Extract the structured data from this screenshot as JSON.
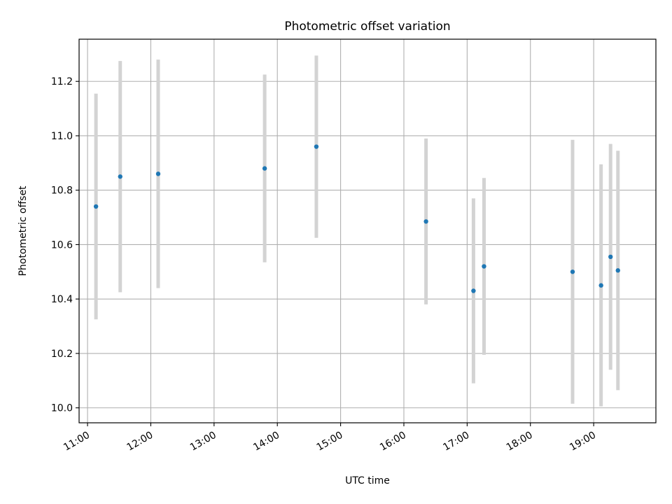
{
  "chart_data": {
    "type": "scatter",
    "title": "Photometric offset variation",
    "xlabel": "UTC time",
    "ylabel": "Photometric offset",
    "x_ticks": [
      "11:00",
      "12:00",
      "13:00",
      "14:00",
      "15:00",
      "16:00",
      "17:00",
      "18:00",
      "19:00"
    ],
    "y_ticks": [
      "10.0",
      "10.2",
      "10.4",
      "10.6",
      "10.8",
      "11.0",
      "11.2"
    ],
    "xlim": [
      "10:52",
      "19:59"
    ],
    "ylim": [
      9.945,
      11.355
    ],
    "grid": true,
    "colors": {
      "marker": "#1f77b4",
      "errorbar": "#d3d3d3",
      "grid": "#b0b0b0"
    },
    "series": [
      {
        "points": [
          {
            "x": "11:08",
            "y": 10.74,
            "yerr": 0.415
          },
          {
            "x": "11:31",
            "y": 10.85,
            "yerr": 0.425
          },
          {
            "x": "12:07",
            "y": 10.86,
            "yerr": 0.42
          },
          {
            "x": "13:48",
            "y": 10.88,
            "yerr": 0.345
          },
          {
            "x": "14:37",
            "y": 10.96,
            "yerr": 0.335
          },
          {
            "x": "16:21",
            "y": 10.685,
            "yerr": 0.305
          },
          {
            "x": "17:06",
            "y": 10.43,
            "yerr": 0.34
          },
          {
            "x": "17:16",
            "y": 10.52,
            "yerr": 0.325
          },
          {
            "x": "18:40",
            "y": 10.5,
            "yerr": 0.485
          },
          {
            "x": "19:07",
            "y": 10.45,
            "yerr": 0.445
          },
          {
            "x": "19:16",
            "y": 10.555,
            "yerr": 0.415
          },
          {
            "x": "19:23",
            "y": 10.505,
            "yerr": 0.44
          }
        ]
      }
    ]
  }
}
